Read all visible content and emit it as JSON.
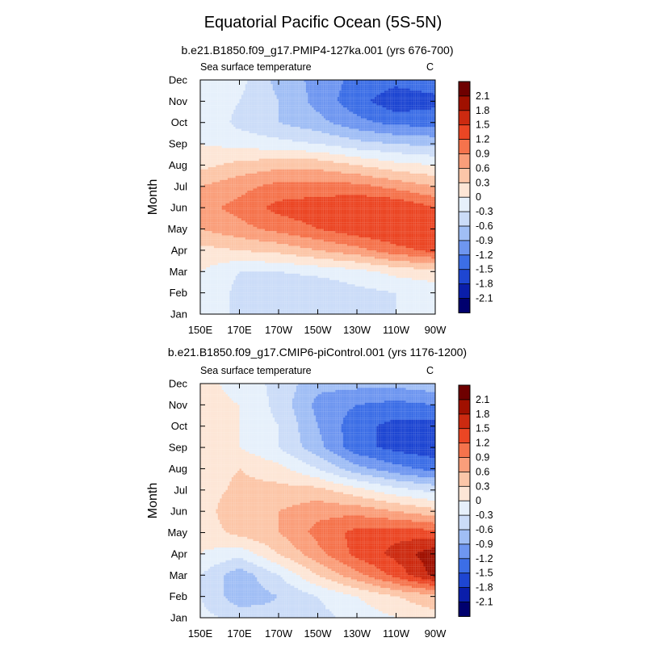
{
  "figure": {
    "title": "Equatorial Pacific Ocean (5S-5N)"
  },
  "chart_data": [
    {
      "type": "heatmap",
      "subtitle": "b.e21.B1850.f09_g17.PMIP4-127ka.001 (yrs 676-700)",
      "left_label": "Sea surface temperature",
      "right_label": "C",
      "ylabel": "Month",
      "xlabel": "",
      "x_ticks": [
        "150E",
        "170E",
        "170W",
        "150W",
        "130W",
        "110W",
        "90W"
      ],
      "y_ticks": [
        "Jan",
        "Feb",
        "Mar",
        "Apr",
        "May",
        "Jun",
        "Jul",
        "Aug",
        "Sep",
        "Oct",
        "Nov",
        "Dec"
      ],
      "lon_range": [
        150,
        270
      ],
      "month_range": [
        1,
        12
      ],
      "colorbar_labels": [
        "2.1",
        "1.8",
        "1.5",
        "1.2",
        "0.9",
        "0.6",
        "0.3",
        "0",
        "-0.3",
        "-0.6",
        "-0.9",
        "-1.2",
        "-1.5",
        "-1.8",
        "-2.1"
      ],
      "grid_lon": [
        150,
        170,
        190,
        210,
        230,
        250,
        270
      ],
      "grid_month": [
        1,
        2,
        3,
        4,
        5,
        6,
        7,
        8,
        9,
        10,
        11,
        12
      ],
      "values": [
        [
          0.0,
          -0.4,
          -0.6,
          -0.5,
          -0.4,
          -0.3,
          -0.3
        ],
        [
          0.0,
          -0.4,
          -0.6,
          -0.6,
          -0.4,
          -0.3,
          -0.2
        ],
        [
          0.0,
          -0.3,
          -0.3,
          -0.2,
          -0.1,
          0.1,
          0.2
        ],
        [
          0.2,
          0.3,
          0.4,
          0.6,
          0.8,
          1.1,
          1.3
        ],
        [
          0.6,
          0.8,
          1.0,
          1.2,
          1.4,
          1.5,
          1.4
        ],
        [
          0.8,
          1.0,
          1.3,
          1.4,
          1.5,
          1.5,
          1.2
        ],
        [
          0.6,
          0.8,
          1.0,
          1.0,
          1.0,
          0.8,
          0.6
        ],
        [
          0.2,
          0.4,
          0.5,
          0.5,
          0.3,
          0.1,
          0.0
        ],
        [
          0.0,
          -0.1,
          -0.2,
          -0.3,
          -0.5,
          -0.6,
          -0.7
        ],
        [
          0.0,
          -0.4,
          -0.6,
          -0.8,
          -1.1,
          -1.3,
          -1.3
        ],
        [
          0.0,
          -0.3,
          -0.6,
          -1.0,
          -1.4,
          -1.7,
          -1.6
        ],
        [
          0.0,
          -0.2,
          -0.7,
          -1.0,
          -1.3,
          -1.4,
          -1.3
        ]
      ]
    },
    {
      "type": "heatmap",
      "subtitle": "b.e21.B1850.f09_g17.CMIP6-piControl.001 (yrs 1176-1200)",
      "left_label": "Sea surface temperature",
      "right_label": "C",
      "ylabel": "Month",
      "xlabel": "",
      "x_ticks": [
        "150E",
        "170E",
        "170W",
        "150W",
        "130W",
        "110W",
        "90W"
      ],
      "y_ticks": [
        "Jan",
        "Feb",
        "Mar",
        "Apr",
        "May",
        "Jun",
        "Jul",
        "Aug",
        "Sep",
        "Oct",
        "Nov",
        "Dec"
      ],
      "lon_range": [
        150,
        270
      ],
      "month_range": [
        1,
        12
      ],
      "colorbar_labels": [
        "2.1",
        "1.8",
        "1.5",
        "1.2",
        "0.9",
        "0.6",
        "0.3",
        "0",
        "-0.3",
        "-0.6",
        "-0.9",
        "-1.2",
        "-1.5",
        "-1.8",
        "-2.1"
      ],
      "grid_lon": [
        150,
        170,
        190,
        210,
        230,
        250,
        270
      ],
      "grid_month": [
        1,
        2,
        3,
        4,
        5,
        6,
        7,
        8,
        9,
        10,
        11,
        12
      ],
      "values": [
        [
          -0.2,
          -0.4,
          -0.5,
          -0.4,
          -0.2,
          0.0,
          0.2
        ],
        [
          -0.3,
          -0.8,
          -0.6,
          -0.3,
          0.0,
          0.3,
          0.5
        ],
        [
          -0.3,
          -0.8,
          -0.3,
          0.3,
          0.8,
          1.3,
          1.9
        ],
        [
          0.0,
          -0.2,
          0.3,
          0.8,
          1.3,
          1.6,
          2.0
        ],
        [
          0.1,
          0.4,
          0.6,
          1.0,
          1.3,
          1.4,
          1.3
        ],
        [
          0.1,
          0.6,
          0.6,
          0.8,
          0.8,
          0.6,
          0.4
        ],
        [
          0.1,
          0.4,
          0.4,
          0.4,
          0.1,
          -0.2,
          -0.4
        ],
        [
          0.1,
          0.3,
          0.1,
          -0.3,
          -0.8,
          -1.1,
          -1.3
        ],
        [
          0.1,
          0.0,
          -0.3,
          -0.8,
          -1.4,
          -1.6,
          -1.7
        ],
        [
          0.1,
          0.0,
          -0.3,
          -0.9,
          -1.4,
          -1.6,
          -1.6
        ],
        [
          0.1,
          0.0,
          -0.4,
          -1.0,
          -1.2,
          -1.3,
          -1.2
        ],
        [
          0.1,
          -0.1,
          -0.4,
          -0.8,
          -0.8,
          -0.8,
          -0.7
        ]
      ]
    }
  ],
  "palette": {
    "colors": [
      "#00006e",
      "#0a1eaa",
      "#1e46d2",
      "#3c6ee6",
      "#6e96f0",
      "#a0bef5",
      "#cbdcf8",
      "#e6f0fb",
      "#fde6d6",
      "#fcc6a8",
      "#fa9e7a",
      "#f5734c",
      "#eb4624",
      "#cc2a10",
      "#a01000",
      "#6e0000"
    ],
    "axis_color": "#000000",
    "background": "#ffffff"
  }
}
